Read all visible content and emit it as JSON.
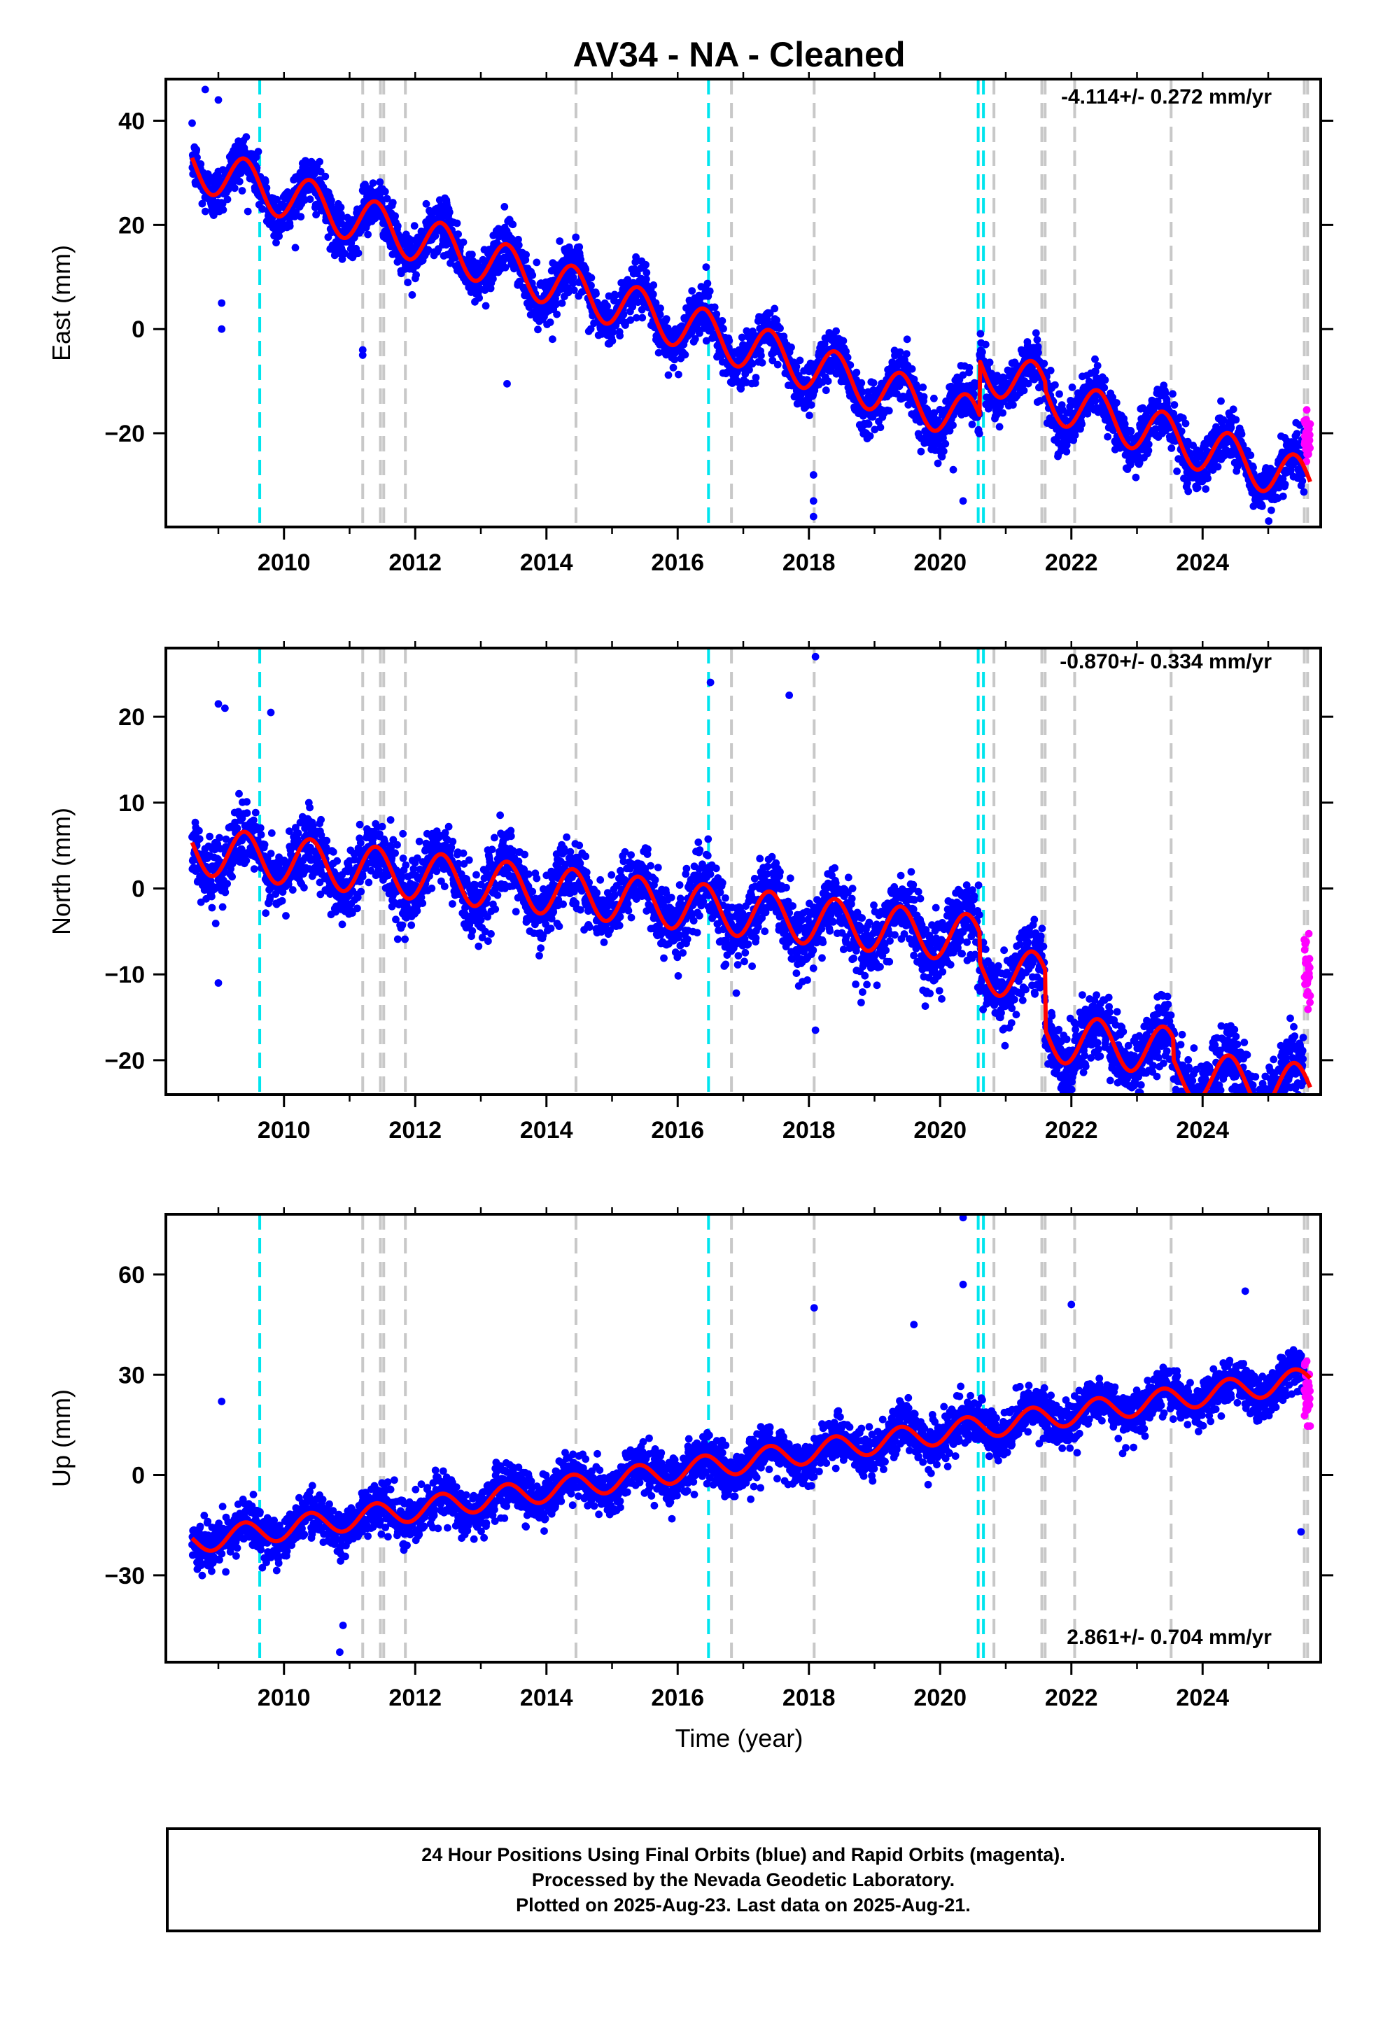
{
  "figure": {
    "title": "AV34  - NA - Cleaned",
    "xlabel": "Time (year)",
    "caption": [
      "24 Hour Positions Using Final Orbits (blue) and Rapid Orbits (magenta).",
      "Processed by the Nevada Geodetic Laboratory.",
      "Plotted on 2025-Aug-23. Last data on 2025-Aug-21."
    ]
  },
  "colors": {
    "final_orbits": "#0000ff",
    "rapid_orbits": "#ff00ff",
    "model": "#ff0000",
    "antenna_change": "#00e5ee",
    "earthquake": "#c8c8c8"
  },
  "chart_data": [
    {
      "type": "scatter",
      "component": "east",
      "ylabel": "East (mm)",
      "rate_text": "-4.114+/- 0.272 mm/yr",
      "xlim": [
        2008.2,
        2025.8
      ],
      "ylim": [
        -38,
        48
      ],
      "x_ticks": [
        2010,
        2012,
        2014,
        2016,
        2018,
        2020,
        2022,
        2024
      ],
      "y_ticks": [
        -20,
        0,
        20,
        40
      ],
      "series": [
        {
          "style": "final",
          "x_range": [
            2008.6,
            2025.55
          ],
          "trend": {
            "intercept_2008_6": 31.5,
            "rate": -4.114
          },
          "seasonal_amp": 4.5,
          "scatter": 3.2,
          "offsets": [
            {
              "x": 2020.6,
              "delta": 10.5
            },
            {
              "x": 2021.6,
              "delta": -1.5
            }
          ]
        },
        {
          "style": "rapid",
          "x_range": [
            2025.55,
            2025.64
          ],
          "center": -20.5,
          "scatter": 2.5
        }
      ],
      "model_series": {
        "style": "model"
      },
      "antenna_changes": [
        2009.63,
        2016.47,
        2020.58,
        2020.66
      ],
      "earthquakes": [
        2011.2,
        2011.47,
        2011.52,
        2011.85,
        2014.45,
        2016.82,
        2018.08,
        2020.82,
        2021.55,
        2021.6,
        2022.05,
        2023.52,
        2025.55,
        2025.6
      ],
      "outliers": [
        [
          2008.8,
          46
        ],
        [
          2009.0,
          44
        ],
        [
          2009.05,
          0
        ],
        [
          2009.05,
          5
        ],
        [
          2011.2,
          -5
        ],
        [
          2011.2,
          -4
        ],
        [
          2013.4,
          -10.5
        ],
        [
          2018.07,
          -28
        ],
        [
          2018.07,
          -33
        ],
        [
          2018.07,
          -36
        ],
        [
          2020.35,
          -33
        ],
        [
          2020.2,
          -27
        ],
        [
          2021.8,
          -24
        ]
      ]
    },
    {
      "type": "scatter",
      "component": "north",
      "ylabel": "North (mm)",
      "rate_text": "-0.870+/- 0.334 mm/yr",
      "xlim": [
        2008.2,
        2025.8
      ],
      "ylim": [
        -24,
        28
      ],
      "x_ticks": [
        2010,
        2012,
        2014,
        2016,
        2018,
        2020,
        2022,
        2024
      ],
      "y_ticks": [
        -20,
        -10,
        0,
        10,
        20
      ],
      "series": [
        {
          "style": "final",
          "x_range": [
            2008.6,
            2025.55
          ],
          "trend": {
            "intercept_2008_6": 4.5,
            "rate": -0.87
          },
          "seasonal_amp": 2.8,
          "scatter": 2.6,
          "offsets": [
            {
              "x": 2020.6,
              "delta": -3.5
            },
            {
              "x": 2021.6,
              "delta": -7.0
            },
            {
              "x": 2023.55,
              "delta": -2.5
            }
          ]
        },
        {
          "style": "rapid",
          "x_range": [
            2025.55,
            2025.64
          ],
          "center": -10,
          "scatter": 2.0
        }
      ],
      "model_series": {
        "style": "model"
      },
      "antenna_changes": [
        2009.63,
        2016.47,
        2020.58,
        2020.66
      ],
      "earthquakes": [
        2011.2,
        2011.47,
        2011.52,
        2011.85,
        2014.45,
        2016.82,
        2018.08,
        2020.82,
        2021.55,
        2021.6,
        2022.05,
        2023.52,
        2025.55,
        2025.6
      ],
      "outliers": [
        [
          2009.0,
          21.5
        ],
        [
          2009.1,
          21
        ],
        [
          2009.8,
          20.5
        ],
        [
          2016.5,
          24
        ],
        [
          2018.1,
          27
        ],
        [
          2017.7,
          22.5
        ],
        [
          2009.0,
          -11
        ],
        [
          2018.1,
          -16.5
        ],
        [
          2021.95,
          -23
        ],
        [
          2022.0,
          -21
        ]
      ]
    },
    {
      "type": "scatter",
      "component": "up",
      "ylabel": "Up (mm)",
      "xlabel": "Time (year)",
      "rate_text": "2.861+/- 0.704 mm/yr",
      "xlim": [
        2008.2,
        2025.8
      ],
      "ylim": [
        -56,
        78
      ],
      "x_ticks": [
        2010,
        2012,
        2014,
        2016,
        2018,
        2020,
        2022,
        2024
      ],
      "y_ticks": [
        -30,
        0,
        30,
        60
      ],
      "series": [
        {
          "style": "final",
          "x_range": [
            2008.6,
            2025.55
          ],
          "trend": {
            "intercept_2008_6": -20,
            "rate": 2.861
          },
          "seasonal_amp": 3.5,
          "scatter": 4.5,
          "offsets": []
        },
        {
          "style": "rapid",
          "x_range": [
            2025.55,
            2025.64
          ],
          "center": 24,
          "scatter": 5.5
        }
      ],
      "model_series": {
        "style": "model"
      },
      "antenna_changes": [
        2009.63,
        2016.47,
        2020.58,
        2020.66
      ],
      "earthquakes": [
        2011.2,
        2011.47,
        2011.52,
        2011.85,
        2014.45,
        2016.82,
        2018.08,
        2020.82,
        2021.55,
        2021.6,
        2022.05,
        2023.52,
        2025.55,
        2025.6
      ],
      "outliers": [
        [
          2009.05,
          22
        ],
        [
          2010.85,
          -53
        ],
        [
          2010.9,
          -45
        ],
        [
          2018.08,
          50
        ],
        [
          2019.6,
          45
        ],
        [
          2020.35,
          77
        ],
        [
          2020.35,
          57
        ],
        [
          2022.0,
          51
        ],
        [
          2024.65,
          55
        ],
        [
          2025.5,
          -17
        ]
      ]
    }
  ]
}
